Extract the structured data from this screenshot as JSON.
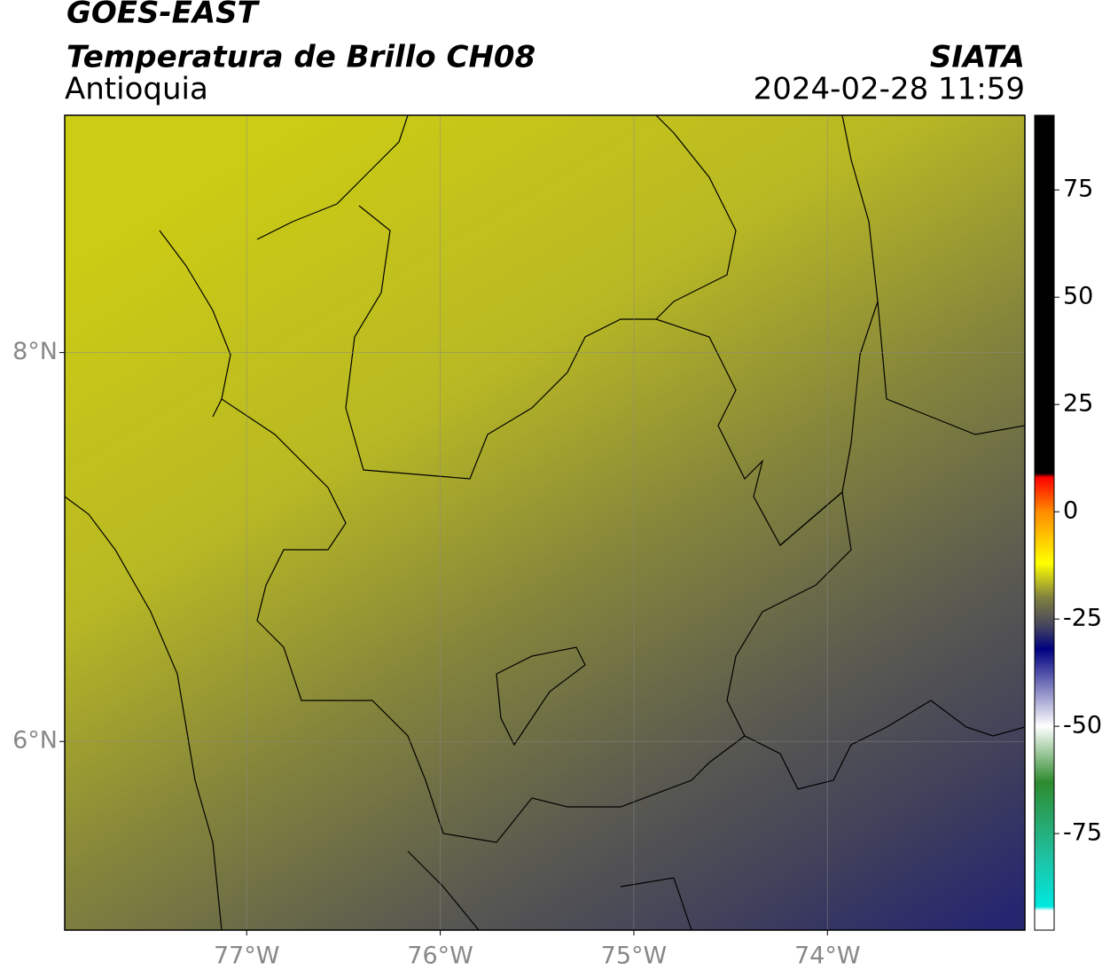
{
  "header": {
    "title": "GOES-EAST",
    "subtitle": "Temperatura de Brillo CH08",
    "region": "Antioquia",
    "source": "SIATA",
    "datetime": "2024-02-28 11:59"
  },
  "map": {
    "xlim": [
      -77.94,
      -72.98
    ],
    "ylim": [
      5.03,
      9.22
    ],
    "xticks": [
      {
        "value": -77,
        "label": "77°W"
      },
      {
        "value": -76,
        "label": "76°W"
      },
      {
        "value": -75,
        "label": "75°W"
      },
      {
        "value": -74,
        "label": "74°W"
      }
    ],
    "yticks": [
      {
        "value": 8,
        "label": "8°N"
      },
      {
        "value": 6,
        "label": "6°N"
      }
    ],
    "grid": true
  },
  "colorbar": {
    "lim": [
      -97.5,
      92.4
    ],
    "ticks": [
      75,
      50,
      25,
      0,
      -25,
      -50,
      -75
    ],
    "colormap": [
      {
        "value": 92.4,
        "color": "#000000"
      },
      {
        "value": 9,
        "color": "#000000"
      },
      {
        "value": 8,
        "color": "#ff0000"
      },
      {
        "value": 0,
        "color": "#ff8c00"
      },
      {
        "value": -12,
        "color": "#ffff00"
      },
      {
        "value": -20,
        "color": "#808040"
      },
      {
        "value": -27,
        "color": "#404060"
      },
      {
        "value": -32,
        "color": "#000080"
      },
      {
        "value": -50,
        "color": "#ffffff"
      },
      {
        "value": -63,
        "color": "#2e8b2e"
      },
      {
        "value": -80,
        "color": "#20c0a0"
      },
      {
        "value": -92,
        "color": "#00e8e0"
      },
      {
        "value": -93,
        "color": "#ffffff"
      },
      {
        "value": -97.5,
        "color": "#ffffff"
      }
    ]
  }
}
